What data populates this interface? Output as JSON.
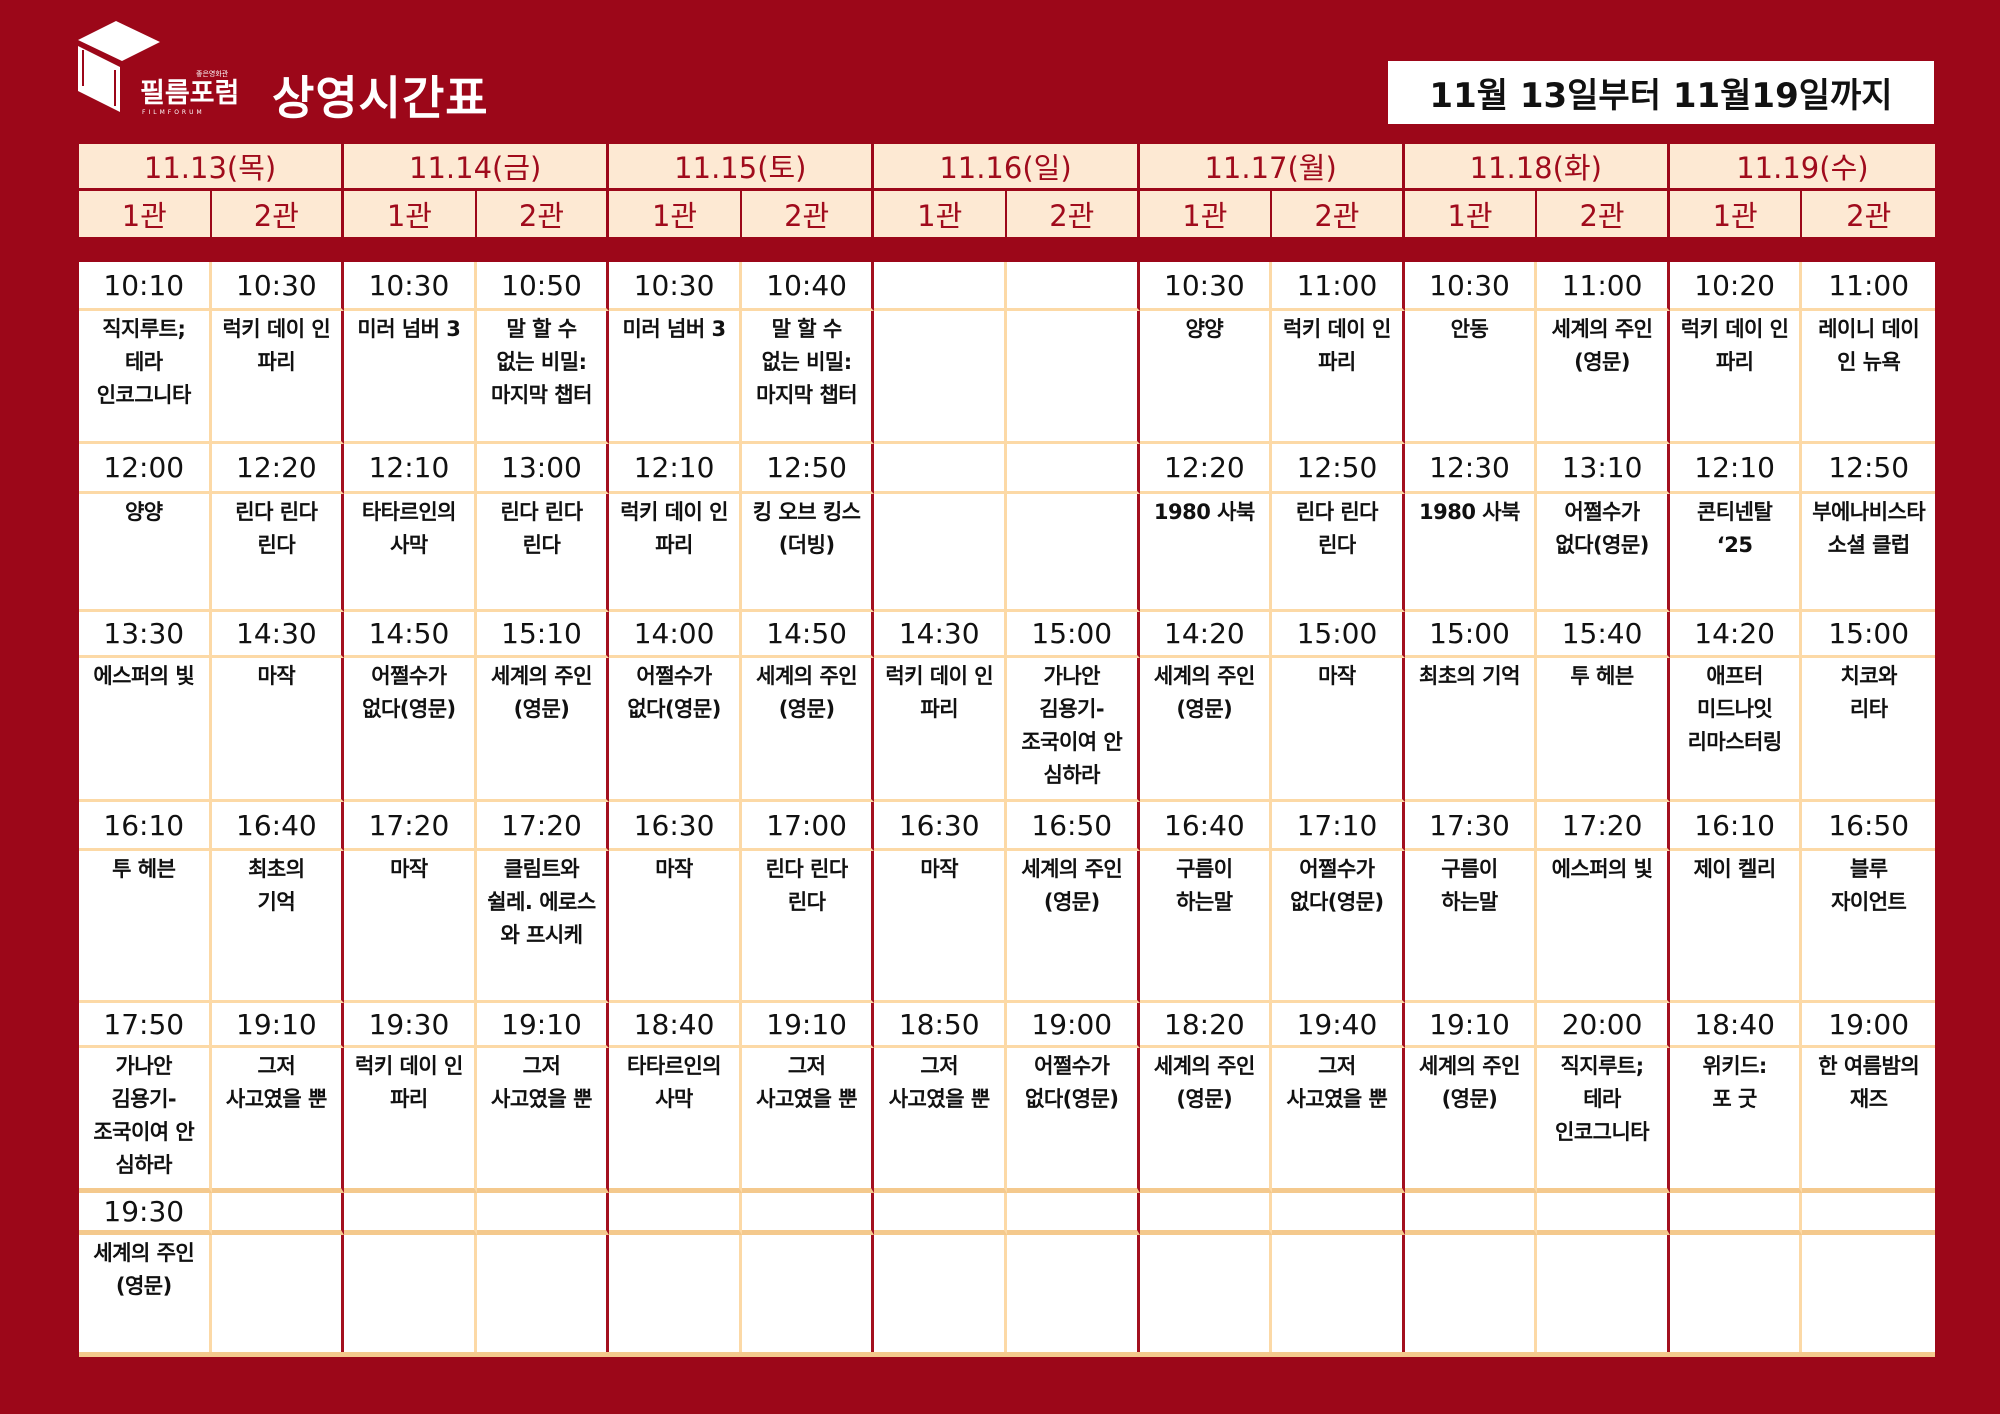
{
  "header": {
    "logo_text": "필름포럼",
    "logo_subtext": "좋은영화관",
    "logo_en": "FILMFORUM",
    "title": "상영시간표",
    "date_range": "11월 13일부터 11월19일까지"
  },
  "colors": {
    "background": "#9c0719",
    "header_cell": "#fde9d3",
    "grid_line": "#fcd9a6",
    "date_text": "#a00b1c"
  },
  "days": [
    {
      "label": "11.13(목)"
    },
    {
      "label": "11.14(금)"
    },
    {
      "label": "11.15(토)"
    },
    {
      "label": "11.16(일)"
    },
    {
      "label": "11.17(월)"
    },
    {
      "label": "11.18(화)"
    },
    {
      "label": "11.19(수)"
    }
  ],
  "halls": [
    "1관",
    "2관"
  ],
  "slots": [
    [
      {
        "time": "10:10",
        "title": "직지루트;\n테라\n인코그니타"
      },
      {
        "time": "10:30",
        "title": "럭키 데이 인\n파리"
      },
      {
        "time": "10:30",
        "title": "미러 넘버 3"
      },
      {
        "time": "10:50",
        "title": "말 할 수\n없는 비밀:\n마지막 챕터"
      },
      {
        "time": "10:30",
        "title": "미러 넘버 3"
      },
      {
        "time": "10:40",
        "title": "말 할 수\n없는 비밀:\n마지막 챕터"
      },
      {
        "time": "",
        "title": ""
      },
      {
        "time": "",
        "title": ""
      },
      {
        "time": "10:30",
        "title": "양양"
      },
      {
        "time": "11:00",
        "title": "럭키 데이 인\n파리"
      },
      {
        "time": "10:30",
        "title": "안동"
      },
      {
        "time": "11:00",
        "title": "세계의 주인\n(영문)"
      },
      {
        "time": "10:20",
        "title": "럭키 데이 인\n파리"
      },
      {
        "time": "11:00",
        "title": "레이니  데이\n인 뉴욕"
      }
    ],
    [
      {
        "time": "12:00",
        "title": "양양"
      },
      {
        "time": "12:20",
        "title": "린다 린다\n린다"
      },
      {
        "time": "12:10",
        "title": "타타르인의\n사막"
      },
      {
        "time": "13:00",
        "title": "린다 린다\n린다"
      },
      {
        "time": "12:10",
        "title": "럭키 데이 인\n파리"
      },
      {
        "time": "12:50",
        "title": "킹 오브 킹스\n(더빙)"
      },
      {
        "time": "",
        "title": ""
      },
      {
        "time": "",
        "title": ""
      },
      {
        "time": "12:20",
        "title": "1980 사북"
      },
      {
        "time": "12:50",
        "title": "린다 린다\n린다"
      },
      {
        "time": "12:30",
        "title": "1980 사북"
      },
      {
        "time": "13:10",
        "title": "어쩔수가\n없다(영문)"
      },
      {
        "time": "12:10",
        "title": "콘티넨탈\n‘25"
      },
      {
        "time": "12:50",
        "title": "부에나비스타\n소셜 클럽"
      }
    ],
    [
      {
        "time": "13:30",
        "title": "에스퍼의 빛"
      },
      {
        "time": "14:30",
        "title": "마작"
      },
      {
        "time": "14:50",
        "title": "어쩔수가\n없다(영문)"
      },
      {
        "time": "15:10",
        "title": "세계의 주인\n(영문)"
      },
      {
        "time": "14:00",
        "title": "어쩔수가\n없다(영문)"
      },
      {
        "time": "14:50",
        "title": "세계의 주인\n(영문)"
      },
      {
        "time": "14:30",
        "title": "럭키 데이 인\n파리"
      },
      {
        "time": "15:00",
        "title": "가나안\n김용기-\n조국이여 안\n심하라"
      },
      {
        "time": "14:20",
        "title": "세계의 주인\n(영문)"
      },
      {
        "time": "15:00",
        "title": "마작"
      },
      {
        "time": "15:00",
        "title": "최초의 기억"
      },
      {
        "time": "15:40",
        "title": "투 헤븐"
      },
      {
        "time": "14:20",
        "title": "애프터\n미드나잇\n리마스터링"
      },
      {
        "time": "15:00",
        "title": "치코와\n리타"
      }
    ],
    [
      {
        "time": "16:10",
        "title": "투 헤븐"
      },
      {
        "time": "16:40",
        "title": "최초의\n기억"
      },
      {
        "time": "17:20",
        "title": "마작"
      },
      {
        "time": "17:20",
        "title": "클림트와\n쉴레. 에로스\n와 프시케"
      },
      {
        "time": "16:30",
        "title": "마작"
      },
      {
        "time": "17:00",
        "title": "린다 린다\n린다"
      },
      {
        "time": "16:30",
        "title": "마작"
      },
      {
        "time": "16:50",
        "title": "세계의 주인\n(영문)"
      },
      {
        "time": "16:40",
        "title": "구름이\n하는말"
      },
      {
        "time": "17:10",
        "title": "어쩔수가\n없다(영문)"
      },
      {
        "time": "17:30",
        "title": "구름이\n하는말"
      },
      {
        "time": "17:20",
        "title": "에스퍼의 빛"
      },
      {
        "time": "16:10",
        "title": "제이 켈리"
      },
      {
        "time": "16:50",
        "title": "블루\n자이언트"
      }
    ],
    [
      {
        "time": "17:50",
        "title": "가나안\n김용기-\n조국이여 안\n심하라"
      },
      {
        "time": "19:10",
        "title": "그저\n사고였을 뿐"
      },
      {
        "time": "19:30",
        "title": "럭키 데이 인\n파리"
      },
      {
        "time": "19:10",
        "title": "그저\n사고였을 뿐"
      },
      {
        "time": "18:40",
        "title": "타타르인의\n사막"
      },
      {
        "time": "19:10",
        "title": "그저\n사고였을 뿐"
      },
      {
        "time": "18:50",
        "title": "그저\n사고였을 뿐"
      },
      {
        "time": "19:00",
        "title": "어쩔수가\n없다(영문)"
      },
      {
        "time": "18:20",
        "title": "세계의 주인\n(영문)"
      },
      {
        "time": "19:40",
        "title": "그저\n사고였을 뿐"
      },
      {
        "time": "19:10",
        "title": "세계의 주인\n(영문)"
      },
      {
        "time": "20:00",
        "title": "직지루트;\n테라\n인코그니타"
      },
      {
        "time": "18:40",
        "title": "위키드:\n포 굿"
      },
      {
        "time": "19:00",
        "title": "한 여름밤의\n재즈"
      }
    ],
    [
      {
        "time": "19:30",
        "title": "세계의 주인\n(영문)"
      },
      {
        "time": "",
        "title": ""
      },
      {
        "time": "",
        "title": ""
      },
      {
        "time": "",
        "title": ""
      },
      {
        "time": "",
        "title": ""
      },
      {
        "time": "",
        "title": ""
      },
      {
        "time": "",
        "title": ""
      },
      {
        "time": "",
        "title": ""
      },
      {
        "time": "",
        "title": ""
      },
      {
        "time": "",
        "title": ""
      },
      {
        "time": "",
        "title": ""
      },
      {
        "time": "",
        "title": ""
      },
      {
        "time": "",
        "title": ""
      },
      {
        "time": "",
        "title": ""
      }
    ]
  ]
}
